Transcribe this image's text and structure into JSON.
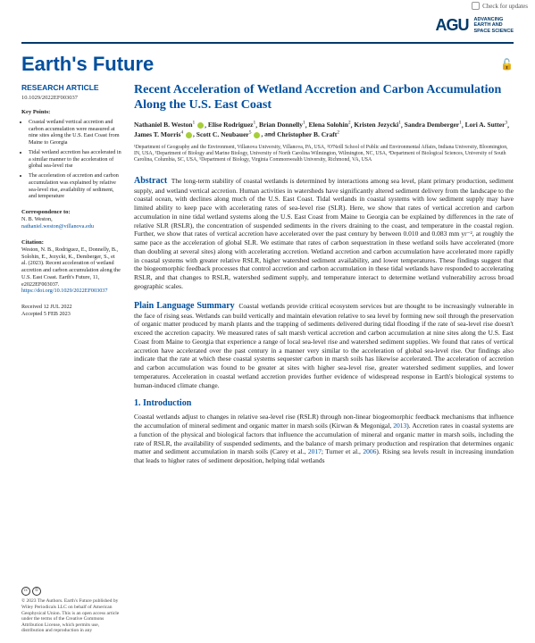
{
  "check_updates": "Check for updates",
  "publisher": {
    "mark": "AGU",
    "tagline_l1": "ADVANCING",
    "tagline_l2": "EARTH AND",
    "tagline_l3": "SPACE SCIENCE"
  },
  "journal": "Earth's Future",
  "sidebar": {
    "article_type": "RESEARCH ARTICLE",
    "doi": "10.1029/2022EF003037",
    "key_points_label": "Key Points:",
    "key_points": [
      "Coastal wetland vertical accretion and carbon accumulation were measured at nine sites along the U.S. East Coast from Maine to Georgia",
      "Tidal wetland accretion has accelerated in a similar manner to the acceleration of global sea-level rise",
      "The acceleration of accretion and carbon accumulation was explained by relative sea-level rise, availability of sediment, and temperature"
    ],
    "correspondence_label": "Correspondence to:",
    "correspondence_name": "N. B. Weston,",
    "correspondence_email": "nathaniel.weston@villanova.edu",
    "citation_label": "Citation:",
    "citation_text": "Weston, N. B., Rodriguez, E., Donnelly, B., Solohin, E., Jezycki, K., Demberger, S., et al. (2023). Recent acceleration of wetland accretion and carbon accumulation along the U.S. East Coast. Earth's Future, 11, e2022EF003037.",
    "citation_doi": "https://doi.org/10.1029/2022EF003037",
    "received": "Received 12 JUL 2022",
    "accepted": "Accepted 5 FEB 2023"
  },
  "article": {
    "title": "Recent Acceleration of Wetland Accretion and Carbon Accumulation Along the U.S. East Coast",
    "authors_html": "Nathaniel B. Weston¹ ⬤, Elise Rodriguez¹, Brian Donnelly¹, Elena Solohin², Kristen Jezycki¹, Sandra Demberger¹, Lori A. Sutter³, James T. Morris⁴ ⬤, Scott C. Neubauer⁵ ⬤, and Christopher B. Craft²",
    "authors": [
      {
        "name": "Nathaniel B. Weston",
        "sup": "1",
        "orcid": true
      },
      {
        "name": "Elise Rodriguez",
        "sup": "1"
      },
      {
        "name": "Brian Donnelly",
        "sup": "1"
      },
      {
        "name": "Elena Solohin",
        "sup": "2"
      },
      {
        "name": "Kristen Jezycki",
        "sup": "1"
      },
      {
        "name": "Sandra Demberger",
        "sup": "1"
      },
      {
        "name": "Lori A. Sutter",
        "sup": "3"
      },
      {
        "name": "James T. Morris",
        "sup": "4",
        "orcid": true
      },
      {
        "name": "Scott C. Neubauer",
        "sup": "5",
        "orcid": true
      },
      {
        "name": "Christopher B. Craft",
        "sup": "2"
      }
    ],
    "affiliations": "¹Department of Geography and the Environment, Villanova University, Villanova, PA, USA, ²O'Neill School of Public and Environmental Affairs, Indiana University, Bloomington, IN, USA, ³Department of Biology and Marine Biology, University of North Carolina Wilmington, Wilmington, NC, USA, ⁴Department of Biological Sciences, University of South Carolina, Columbia, SC, USA, ⁵Department of Biology, Virginia Commonwealth University, Richmond, VA, USA",
    "abstract_label": "Abstract",
    "abstract": "The long-term stability of coastal wetlands is determined by interactions among sea level, plant primary production, sediment supply, and wetland vertical accretion. Human activities in watersheds have significantly altered sediment delivery from the landscape to the coastal ocean, with declines along much of the U.S. East Coast. Tidal wetlands in coastal systems with low sediment supply may have limited ability to keep pace with accelerating rates of sea-level rise (SLR). Here, we show that rates of vertical accretion and carbon accumulation in nine tidal wetland systems along the U.S. East Coast from Maine to Georgia can be explained by differences in the rate of relative SLR (RSLR), the concentration of suspended sediments in the rivers draining to the coast, and temperature in the coastal region. Further, we show that rates of vertical accretion have accelerated over the past century by between 0.010 and 0.083 mm yr⁻², at roughly the same pace as the acceleration of global SLR. We estimate that rates of carbon sequestration in these wetland soils have accelerated (more than doubling at several sites) along with accelerating accretion. Wetland accretion and carbon accumulation have accelerated more rapidly in coastal systems with greater relative RSLR, higher watershed sediment availability, and lower temperatures. These findings suggest that the biogeomorphic feedback processes that control accretion and carbon accumulation in these tidal wetlands have responded to accelerating RSLR, and that changes to RSLR, watershed sediment supply, and temperature interact to determine wetland vulnerability across broad geographic scales.",
    "plain_label": "Plain Language Summary",
    "plain": "Coastal wetlands provide critical ecosystem services but are thought to be increasingly vulnerable in the face of rising seas. Wetlands can build vertically and maintain elevation relative to sea level by forming new soil through the preservation of organic matter produced by marsh plants and the trapping of sediments delivered during tidal flooding if the rate of sea-level rise doesn't exceed the accretion capacity. We measured rates of salt marsh vertical accretion and carbon accumulation at nine sites along the U.S. East Coast from Maine to Georgia that experience a range of local sea-level rise and watershed sediment supplies. We found that rates of vertical accretion have accelerated over the past century in a manner very similar to the acceleration of global sea-level rise. Our findings also indicate that the rate at which these coastal systems sequester carbon in marsh soils has likewise accelerated. The acceleration of accretion and carbon accumulation was found to be greater at sites with higher sea-level rise, greater watershed sediment supplies, and lower temperatures. Acceleration in coastal wetland accretion provides further evidence of widespread response in Earth's biological systems to human-induced climate change.",
    "intro_label": "1.  Introduction",
    "intro": "Coastal wetlands adjust to changes in relative sea-level rise (RSLR) through non-linear biogeomorphic feedback mechanisms that influence the accumulation of mineral sediment and organic matter in marsh soils (Kirwan & Megonigal, 2013). Accretion rates in coastal systems are a function of the physical and biological factors that influence the accumulation of mineral and organic matter in marsh soils, including the rate of RSLR, the availability of suspended sediments, and the balance of marsh primary production and respiration that determines organic matter and sediment accumulation in marsh soils (Carey et al., 2017; Turner et al., 2006). Rising sea levels result in increasing inundation that leads to higher rates of sediment deposition, helping tidal wetlands"
  },
  "footer": {
    "copyright": "© 2023 The Authors. Earth's Future published by Wiley Periodicals LLC on behalf of American Geophysical Union. This is an open access article under the terms of the Creative Commons Attribution License, which permits use, distribution and reproduction in any"
  },
  "colors": {
    "brand_blue": "#004f9e",
    "dark_blue": "#003a6a",
    "orcid_green": "#a6ce39",
    "lock_gold": "#d4a017"
  }
}
